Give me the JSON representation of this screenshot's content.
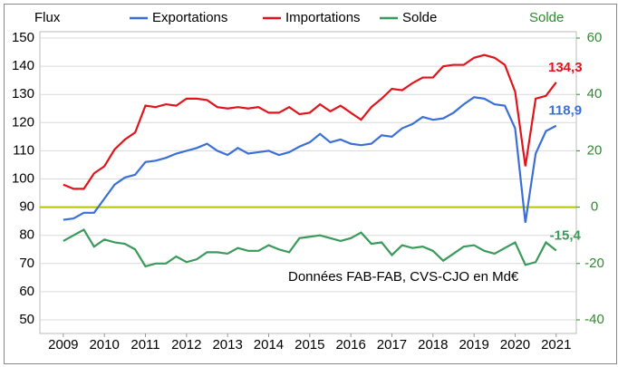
{
  "chart_data": {
    "type": "line",
    "y_label": "Flux",
    "y2_label": "Solde",
    "annotation": "Données FAB-FAB, CVS-CJO en Md€",
    "x": [
      2009,
      2009.25,
      2009.5,
      2009.75,
      2010,
      2010.25,
      2010.5,
      2010.75,
      2011,
      2011.25,
      2011.5,
      2011.75,
      2012,
      2012.25,
      2012.5,
      2012.75,
      2013,
      2013.25,
      2013.5,
      2013.75,
      2014,
      2014.25,
      2014.5,
      2014.75,
      2015,
      2015.25,
      2015.5,
      2015.75,
      2016,
      2016.25,
      2016.5,
      2016.75,
      2017,
      2017.25,
      2017.5,
      2017.75,
      2018,
      2018.25,
      2018.5,
      2018.75,
      2019,
      2019.25,
      2019.5,
      2019.75,
      2020,
      2020.25,
      2020.5,
      2020.75,
      2021
    ],
    "xlim": [
      2008.43,
      2021.49
    ],
    "xticks": [
      2009,
      2010,
      2011,
      2012,
      2013,
      2014,
      2015,
      2016,
      2017,
      2018,
      2019,
      2020,
      2021
    ],
    "ylim": [
      50,
      150
    ],
    "yticks": [
      50,
      60,
      70,
      80,
      90,
      100,
      110,
      120,
      130,
      140,
      150
    ],
    "y2lim": [
      -40,
      60
    ],
    "y2ticks": [
      -40,
      -20,
      0,
      20,
      40,
      60
    ],
    "y2_color": "#2e8b2e",
    "grid": true,
    "reference_line": {
      "axis": "y2",
      "value": 0,
      "color": "#b5c400"
    },
    "legend": "top",
    "series": [
      {
        "name": "Exportations",
        "color": "#3b6fd8",
        "values": [
          85.5,
          86,
          88,
          88,
          93,
          98,
          100.5,
          101.5,
          106,
          106.5,
          107.5,
          109,
          110,
          111,
          112.5,
          110,
          108.5,
          111,
          109,
          109.5,
          110,
          108.5,
          109.5,
          111.5,
          113,
          116,
          113,
          114,
          112.5,
          112,
          112.5,
          115.5,
          115,
          118,
          119.5,
          122,
          121,
          121.5,
          123.5,
          126.5,
          129,
          128.5,
          126.5,
          126,
          118,
          84.5,
          109,
          117,
          118.9
        ],
        "value_labels": [
          null,
          null,
          null,
          null,
          null,
          null,
          null,
          null,
          null,
          null,
          null,
          null,
          null,
          null,
          null,
          null,
          null,
          null,
          null,
          null,
          null,
          null,
          null,
          null,
          null,
          null,
          null,
          null,
          null,
          null,
          null,
          null,
          null,
          null,
          null,
          null,
          null,
          null,
          null,
          null,
          null,
          null,
          null,
          null,
          null,
          null,
          null,
          null,
          "118,9"
        ]
      },
      {
        "name": "Importations",
        "color": "#e0141a",
        "values": [
          98,
          96.5,
          96.5,
          102,
          104.5,
          110.5,
          114,
          116.5,
          126,
          125.5,
          126.5,
          126,
          128.5,
          128.5,
          128,
          125.5,
          125,
          125.5,
          125,
          125.5,
          123.5,
          123.5,
          125.5,
          123,
          123.5,
          126.5,
          124,
          126,
          123.5,
          121,
          125.5,
          128.5,
          132,
          131.5,
          134,
          136,
          136,
          140,
          140.5,
          140.5,
          143,
          144,
          143,
          140.5,
          131,
          104.5,
          128.5,
          129.5,
          134.3
        ],
        "value_labels": [
          null,
          null,
          null,
          null,
          null,
          null,
          null,
          null,
          null,
          null,
          null,
          null,
          null,
          null,
          null,
          null,
          null,
          null,
          null,
          null,
          null,
          null,
          null,
          null,
          null,
          null,
          null,
          null,
          null,
          null,
          null,
          null,
          null,
          null,
          null,
          null,
          null,
          null,
          null,
          null,
          null,
          null,
          null,
          null,
          null,
          null,
          null,
          null,
          "134,3"
        ]
      },
      {
        "name": "Solde",
        "color": "#3a9a5a",
        "axis": "y2",
        "values": [
          -12,
          -10,
          -8,
          -14,
          -11.5,
          -12.5,
          -13,
          -15,
          -21,
          -20,
          -20,
          -17.5,
          -19.5,
          -18.5,
          -16,
          -16,
          -16.5,
          -14.5,
          -15.5,
          -15.5,
          -13.5,
          -15,
          -16,
          -11,
          -10.5,
          -10,
          -11,
          -12,
          -11,
          -9,
          -13,
          -12.5,
          -17,
          -13.5,
          -14.5,
          -14,
          -15.5,
          -19,
          -16.5,
          -14,
          -13.5,
          -15.5,
          -16.5,
          -14.5,
          -12.5,
          -20.5,
          -19.5,
          -12.5,
          -15.4
        ],
        "value_labels": [
          null,
          null,
          null,
          null,
          null,
          null,
          null,
          null,
          null,
          null,
          null,
          null,
          null,
          null,
          null,
          null,
          null,
          null,
          null,
          null,
          null,
          null,
          null,
          null,
          null,
          null,
          null,
          null,
          null,
          null,
          null,
          null,
          null,
          null,
          null,
          null,
          null,
          null,
          null,
          null,
          null,
          null,
          null,
          null,
          null,
          null,
          null,
          null,
          "-15,4"
        ]
      }
    ]
  }
}
